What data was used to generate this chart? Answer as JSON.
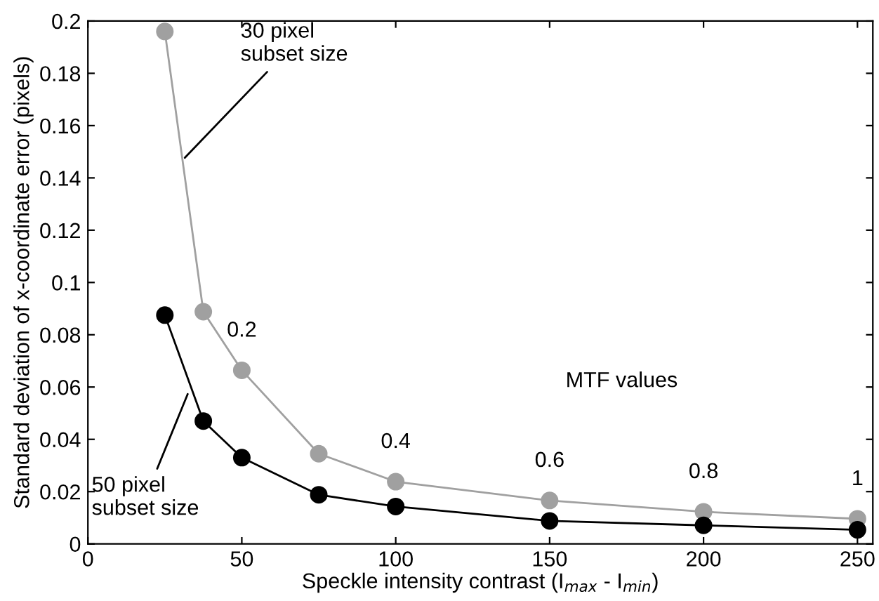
{
  "chart_data": {
    "type": "line",
    "xlabel": "Speckle intensity contrast (I$_{max}$ - I$_{min}$)",
    "ylabel": "Standard deviation of x-coordinate error (pixels)",
    "x": [
      25,
      37.5,
      50,
      75,
      100,
      150,
      200,
      250
    ],
    "series": [
      {
        "color": "#a0a0a0",
        "values": [
          0.196,
          0.0888,
          0.0664,
          0.0345,
          0.0238,
          0.0166,
          0.0123,
          0.0096
        ]
      },
      {
        "color": "#000000",
        "values": [
          0.0875,
          0.047,
          0.033,
          0.0188,
          0.0143,
          0.0088,
          0.0071,
          0.0054
        ]
      }
    ],
    "xlim": [
      0,
      255
    ],
    "ylim": [
      0,
      0.2
    ],
    "xticks": [
      0,
      50,
      100,
      150,
      200,
      250
    ],
    "yticks": [
      0,
      0.02,
      0.04,
      0.06,
      0.08,
      0.1,
      0.12,
      0.14,
      0.16,
      0.18,
      0.2
    ],
    "marker": "circle",
    "grid": false,
    "legend": false,
    "annotations": [
      {
        "text": "30 pixel\nsubset size",
        "x": 30.6,
        "y": 0.1466
      },
      {
        "text": "50 pixel\nsubset size",
        "x": 32.9,
        "y": 0.0587
      },
      {
        "text": "0.2",
        "x": 50,
        "y": 0.0664
      },
      {
        "text": "0.4",
        "x": 100,
        "y": 0.0238
      },
      {
        "text": "0.6",
        "x": 150,
        "y": 0.0166
      },
      {
        "text": "0.8",
        "x": 200,
        "y": 0.0123
      },
      {
        "text": "1",
        "x": 250,
        "y": 0.0096
      },
      "MTF values"
    ]
  }
}
